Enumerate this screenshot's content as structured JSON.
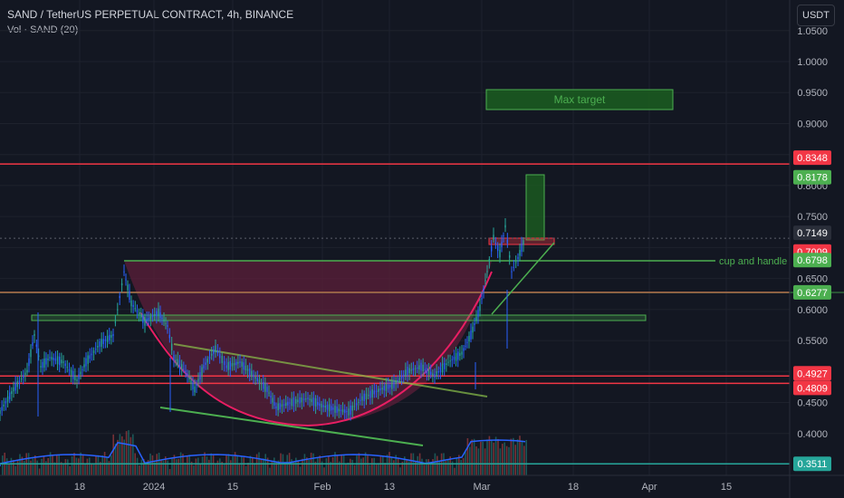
{
  "header": {
    "title": "SAND / TetherUS PERPETUAL CONTRACT, 4h, BINANCE",
    "volume_label": "Vol · SAND (20)",
    "currency_button": "USDT"
  },
  "colors": {
    "background": "#131722",
    "grid": "#1e222d",
    "red_line": "#f23645",
    "green_line": "#4caf50",
    "candle_up": "#26a69a",
    "candle_down": "#2962ff",
    "cup_fill": "#5c1f3a",
    "cup_stroke": "#e91e63"
  },
  "chart_data": {
    "type": "line",
    "title": "SAND / TetherUS PERPETUAL CONTRACT, 4h, BINANCE",
    "y_axis": {
      "ticks": [
        "1.0500",
        "1.0000",
        "0.9500",
        "0.9000",
        "0.8500",
        "0.8000",
        "0.7500",
        "0.7000",
        "0.6500",
        "0.6000",
        "0.5500",
        "0.5000",
        "0.4500",
        "0.4000",
        "0.3500"
      ],
      "ylim": [
        0.35,
        1.06
      ]
    },
    "x_axis": {
      "ticks": [
        "18",
        "2024",
        "15",
        "Feb",
        "13",
        "Mar",
        "18",
        "Apr",
        "15"
      ]
    },
    "price_labels": [
      {
        "text": "0.8348",
        "value": 0.8348,
        "color": "#f23645"
      },
      {
        "text": "0.8178",
        "value": 0.8178,
        "color": "#4caf50"
      },
      {
        "text": "0.7149",
        "value": 0.7149,
        "color": "#2a2e39"
      },
      {
        "text": "0.7009",
        "value": 0.7009,
        "color": "#f23645"
      },
      {
        "text": "0.6798",
        "value": 0.6798,
        "color": "#4caf50"
      },
      {
        "text": "0.6277",
        "value": 0.6277,
        "color": "#4caf50"
      },
      {
        "text": "0.4927",
        "value": 0.4927,
        "color": "#f23645"
      },
      {
        "text": "0.4809",
        "value": 0.4809,
        "color": "#f23645"
      },
      {
        "text": "0.3511",
        "value": 0.3511,
        "color": "#26a69a"
      }
    ],
    "annotations": [
      {
        "text": "Max target"
      },
      {
        "text": "cup and handle"
      }
    ],
    "horizontal_levels": [
      0.8348,
      0.6277,
      0.4927,
      0.4809
    ]
  }
}
